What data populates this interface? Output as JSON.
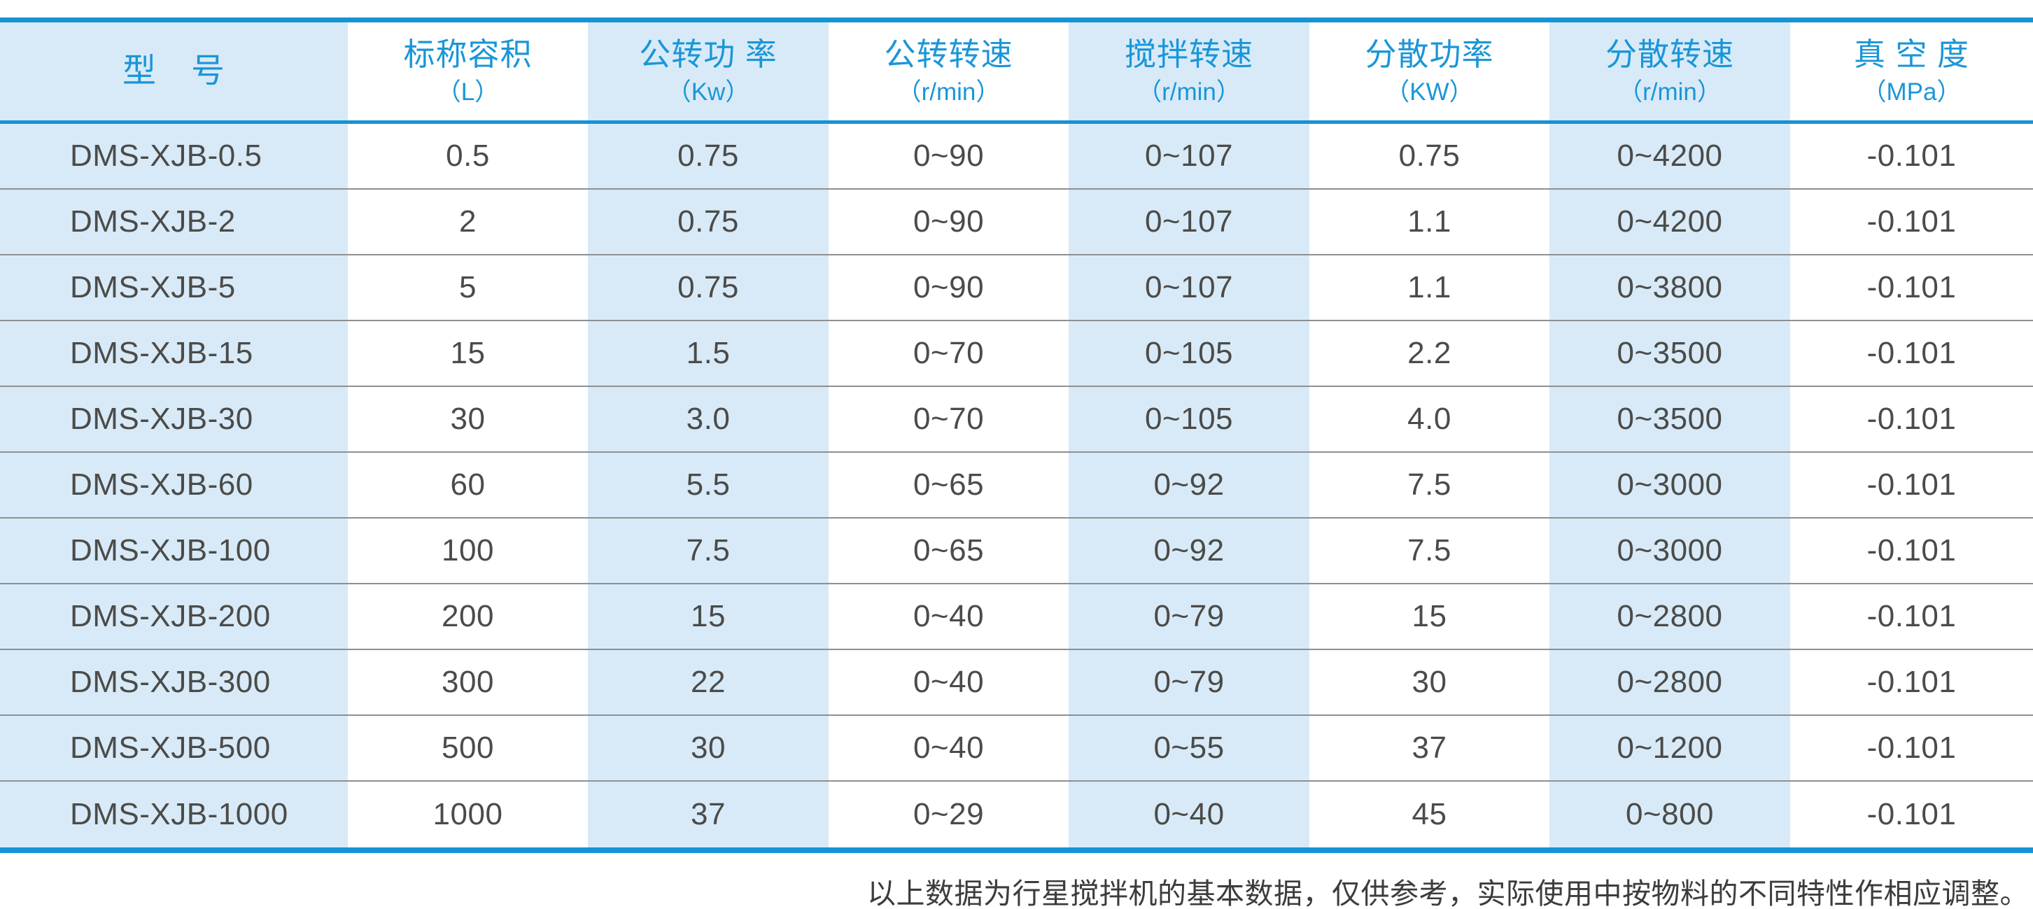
{
  "colors": {
    "accent": "#1593d5",
    "band": "#d8eaf7",
    "header_text": "#1a96d8",
    "text_dark": "#4b4b49",
    "row_separator": "#8f8f8f",
    "footnote_text": "#3c3c3c"
  },
  "table": {
    "columns": [
      {
        "title": "型　号",
        "unit": ""
      },
      {
        "title": "标称容积",
        "unit": "（L）"
      },
      {
        "title": "公转功 率",
        "unit": "（Kw）"
      },
      {
        "title": "公转转速",
        "unit": "（r/min）"
      },
      {
        "title": "搅拌转速",
        "unit": "（r/min）"
      },
      {
        "title": "分散功率",
        "unit": "（KW）"
      },
      {
        "title": "分散转速",
        "unit": "（r/min）"
      },
      {
        "title": "真 空 度",
        "unit": "（MPa）"
      }
    ],
    "rows": [
      [
        "DMS-XJB-0.5",
        "0.5",
        "0.75",
        "0~90",
        "0~107",
        "0.75",
        "0~4200",
        "-0.101"
      ],
      [
        "DMS-XJB-2",
        "2",
        "0.75",
        "0~90",
        "0~107",
        "1.1",
        "0~4200",
        "-0.101"
      ],
      [
        "DMS-XJB-5",
        "5",
        "0.75",
        "0~90",
        "0~107",
        "1.1",
        "0~3800",
        "-0.101"
      ],
      [
        "DMS-XJB-15",
        "15",
        "1.5",
        "0~70",
        "0~105",
        "2.2",
        "0~3500",
        "-0.101"
      ],
      [
        "DMS-XJB-30",
        "30",
        "3.0",
        "0~70",
        "0~105",
        "4.0",
        "0~3500",
        "-0.101"
      ],
      [
        "DMS-XJB-60",
        "60",
        "5.5",
        "0~65",
        "0~92",
        "7.5",
        "0~3000",
        "-0.101"
      ],
      [
        "DMS-XJB-100",
        "100",
        "7.5",
        "0~65",
        "0~92",
        "7.5",
        "0~3000",
        "-0.101"
      ],
      [
        "DMS-XJB-200",
        "200",
        "15",
        "0~40",
        "0~79",
        "15",
        "0~2800",
        "-0.101"
      ],
      [
        "DMS-XJB-300",
        "300",
        "22",
        "0~40",
        "0~79",
        "30",
        "0~2800",
        "-0.101"
      ],
      [
        "DMS-XJB-500",
        "500",
        "30",
        "0~40",
        "0~55",
        "37",
        "0~1200",
        "-0.101"
      ],
      [
        "DMS-XJB-1000",
        "1000",
        "37",
        "0~29",
        "0~40",
        "45",
        "0~800",
        "-0.101"
      ]
    ]
  },
  "footnote": {
    "text": "以上数据为行星搅拌机的基本数据，仅供参考，实际使用中按物料的不同特性作相应调整。"
  }
}
